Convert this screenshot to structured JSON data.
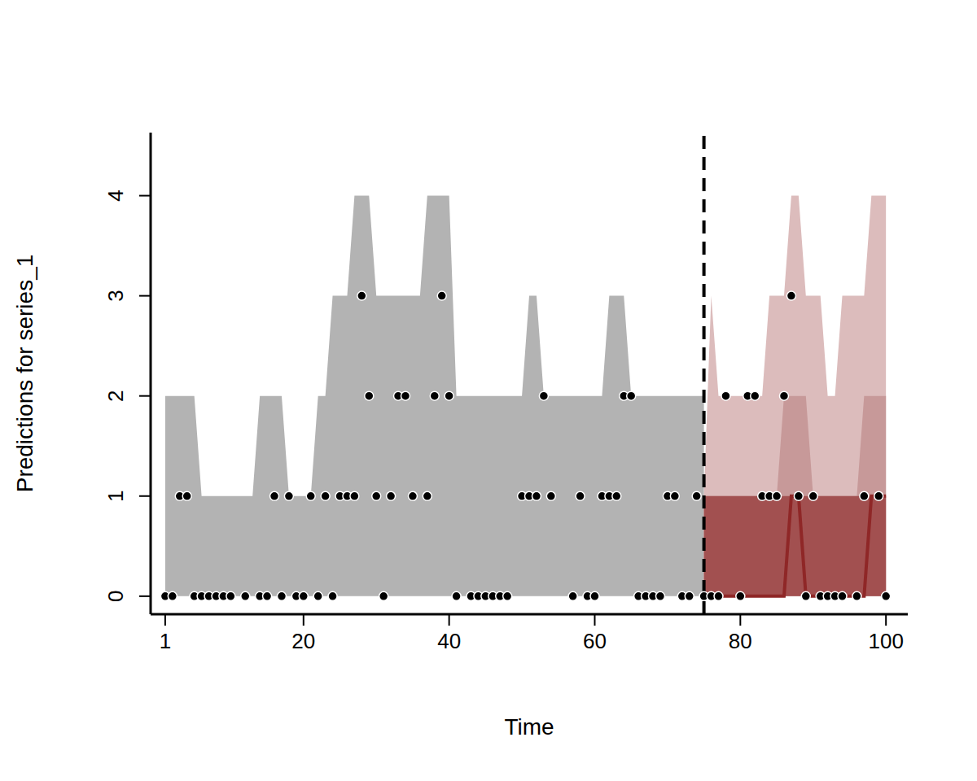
{
  "chart_data": {
    "type": "forecast",
    "x_label": "Time",
    "y_label": "Predictions for series_1",
    "xlim": [
      -1,
      103
    ],
    "xticks": [
      1,
      20,
      40,
      60,
      80,
      100
    ],
    "ylim": [
      -0.18,
      4.63
    ],
    "yticks": [
      0,
      1,
      2,
      3,
      4
    ],
    "grid": false,
    "x": [
      1,
      2,
      3,
      4,
      5,
      6,
      7,
      8,
      9,
      10,
      11,
      12,
      13,
      14,
      15,
      16,
      17,
      18,
      19,
      20,
      21,
      22,
      23,
      24,
      25,
      26,
      27,
      28,
      29,
      30,
      31,
      32,
      33,
      34,
      35,
      36,
      37,
      38,
      39,
      40,
      41,
      42,
      43,
      44,
      45,
      46,
      47,
      48,
      49,
      50,
      51,
      52,
      53,
      54,
      55,
      56,
      57,
      58,
      59,
      60,
      61,
      62,
      63,
      64,
      65,
      66,
      67,
      68,
      69,
      70,
      71,
      72,
      73,
      74,
      75,
      76,
      77,
      78,
      79,
      80,
      81,
      82,
      83,
      84,
      85,
      86,
      87,
      88,
      89,
      90,
      91,
      92,
      93,
      94,
      95,
      96,
      97,
      98,
      99,
      100
    ],
    "observed": [
      0,
      0,
      1,
      1,
      0,
      0,
      0,
      0,
      0,
      0,
      null,
      0,
      null,
      0,
      0,
      1,
      0,
      1,
      0,
      0,
      1,
      0,
      1,
      0,
      1,
      1,
      1,
      3,
      2,
      1,
      0,
      1,
      2,
      2,
      1,
      null,
      1,
      2,
      3,
      2,
      0,
      null,
      0,
      0,
      0,
      0,
      0,
      0,
      null,
      1,
      1,
      1,
      2,
      1,
      null,
      null,
      0,
      1,
      0,
      0,
      1,
      1,
      1,
      2,
      2,
      0,
      0,
      0,
      0,
      1,
      1,
      0,
      0,
      1,
      0,
      0,
      0,
      2,
      null,
      0,
      2,
      2,
      1,
      1,
      1,
      2,
      3,
      1,
      0,
      1,
      0,
      0,
      0,
      0,
      null,
      0,
      1,
      null,
      1,
      0
    ],
    "interval": {
      "color": "#b3b3b3",
      "x": [
        1,
        2,
        3,
        4,
        5,
        6,
        7,
        8,
        9,
        10,
        11,
        12,
        13,
        14,
        15,
        16,
        17,
        18,
        19,
        20,
        21,
        22,
        23,
        24,
        25,
        26,
        27,
        28,
        29,
        30,
        31,
        32,
        33,
        34,
        35,
        36,
        37,
        38,
        39,
        40,
        41,
        42,
        43,
        44,
        45,
        46,
        47,
        48,
        49,
        50,
        51,
        52,
        53,
        54,
        55,
        56,
        57,
        58,
        59,
        60,
        61,
        62,
        63,
        64,
        65,
        66,
        67,
        68,
        69,
        70,
        71,
        72,
        73,
        74,
        75
      ],
      "lower": [
        0,
        0,
        0,
        0,
        0,
        0,
        0,
        0,
        0,
        0,
        0,
        0,
        0,
        0,
        0,
        0,
        0,
        0,
        0,
        0,
        0,
        0,
        0,
        0,
        0,
        0,
        0,
        0,
        0,
        0,
        0,
        0,
        0,
        0,
        0,
        0,
        0,
        0,
        0,
        0,
        0,
        0,
        0,
        0,
        0,
        0,
        0,
        0,
        0,
        0,
        0,
        0,
        0,
        0,
        0,
        0,
        0,
        0,
        0,
        0,
        0,
        0,
        0,
        0,
        0,
        0,
        0,
        0,
        0,
        0,
        0,
        0,
        0,
        0,
        0
      ],
      "upper": [
        2,
        2,
        2,
        2,
        2,
        1,
        1,
        1,
        1,
        1,
        1,
        1,
        1,
        2,
        2,
        2,
        2,
        1,
        1,
        1,
        1,
        2,
        2,
        3,
        3,
        3,
        4,
        4,
        4,
        3,
        3,
        3,
        3,
        3,
        3,
        3,
        4,
        4,
        4,
        4,
        2,
        2,
        2,
        2,
        2,
        2,
        2,
        2,
        2,
        2,
        3,
        3,
        2,
        2,
        2,
        2,
        2,
        2,
        2,
        2,
        2,
        3,
        3,
        3,
        2,
        2,
        2,
        2,
        2,
        2,
        2,
        2,
        2,
        2,
        2
      ]
    },
    "forecast": {
      "x": [
        75,
        76,
        77,
        78,
        79,
        80,
        81,
        82,
        83,
        84,
        85,
        86,
        87,
        88,
        89,
        90,
        91,
        92,
        93,
        94,
        95,
        96,
        97,
        98,
        99,
        100
      ],
      "bands": [
        {
          "color": "#dcbcbc",
          "lower": [
            0,
            0,
            0,
            0,
            0,
            0,
            0,
            0,
            0,
            0,
            0,
            0,
            0,
            0,
            0,
            0,
            0,
            0,
            0,
            0,
            0,
            0,
            0,
            0,
            0,
            0
          ],
          "upper": [
            1,
            3,
            2,
            2,
            2,
            2,
            2,
            2,
            2,
            3,
            3,
            3,
            4,
            4,
            3,
            3,
            3,
            2,
            2,
            3,
            3,
            3,
            3,
            4,
            4,
            4
          ]
        },
        {
          "color": "#c79999",
          "lower": [
            0,
            0,
            0,
            0,
            0,
            0,
            0,
            0,
            0,
            0,
            0,
            0,
            0,
            0,
            0,
            0,
            0,
            0,
            0,
            0,
            0,
            0,
            0,
            0,
            0,
            0
          ],
          "upper": [
            1,
            1,
            1,
            1,
            1,
            1,
            1,
            1,
            1,
            1,
            1,
            2,
            2,
            2,
            2,
            1,
            1,
            1,
            1,
            1,
            1,
            1,
            2,
            2,
            2,
            2
          ]
        },
        {
          "color": "#a25050",
          "lower": [
            0,
            0,
            0,
            0,
            0,
            0,
            0,
            0,
            0,
            0,
            0,
            0,
            0,
            0,
            0,
            0,
            0,
            0,
            0,
            0,
            0,
            0,
            0,
            0,
            0,
            0
          ],
          "upper": [
            1,
            1,
            1,
            1,
            1,
            1,
            1,
            1,
            1,
            1,
            1,
            1,
            1,
            1,
            1,
            1,
            1,
            1,
            1,
            1,
            1,
            1,
            1,
            1,
            1,
            1
          ]
        }
      ],
      "median_color": "#8f2727",
      "median": [
        0,
        0,
        0,
        0,
        0,
        0,
        0,
        0,
        0,
        0,
        0,
        0,
        1,
        1,
        0,
        0,
        0,
        0,
        0,
        0,
        0,
        0,
        0,
        1,
        1,
        1
      ]
    }
  }
}
